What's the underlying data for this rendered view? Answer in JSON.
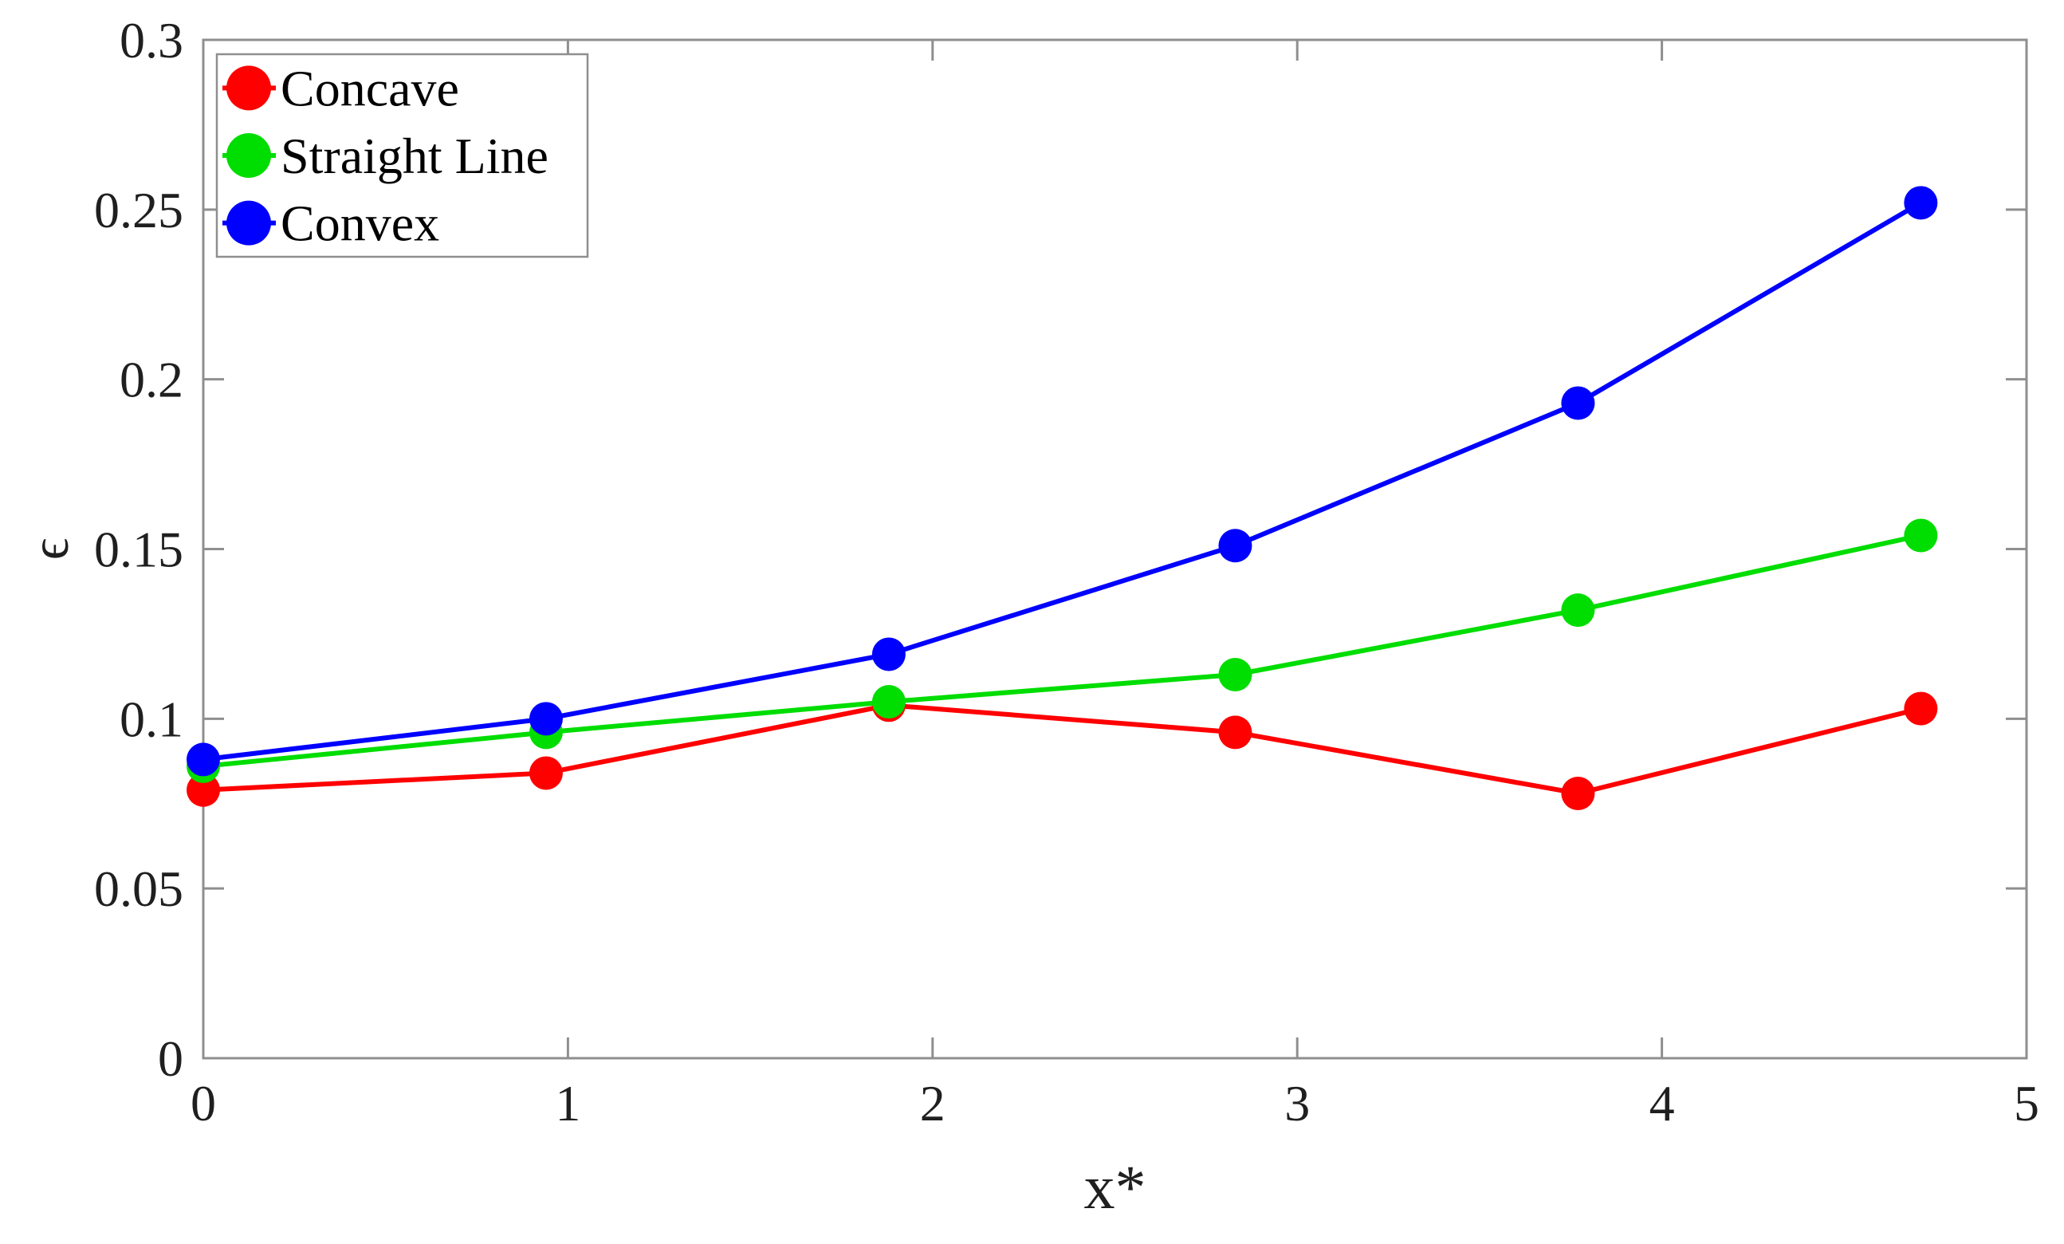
{
  "chart_data": {
    "type": "line",
    "title": "",
    "xlabel": "x*",
    "ylabel": "ϵ",
    "xlim": [
      0,
      5
    ],
    "ylim": [
      0,
      0.3
    ],
    "xticks": [
      0,
      1,
      2,
      3,
      4,
      5
    ],
    "xtick_labels": [
      "0",
      "1",
      "2",
      "3",
      "4",
      "5"
    ],
    "yticks": [
      0,
      0.05,
      0.1,
      0.15,
      0.2,
      0.25,
      0.3
    ],
    "ytick_labels": [
      "0",
      "0.05",
      "0.1",
      "0.15",
      "0.2",
      "0.25",
      "0.3"
    ],
    "grid": false,
    "x": [
      0,
      0.94,
      1.88,
      2.83,
      3.77,
      4.71
    ],
    "series": [
      {
        "name": "Concave",
        "color": "#ff0000",
        "marker": "circle",
        "values": [
          0.079,
          0.084,
          0.104,
          0.096,
          0.078,
          0.103
        ]
      },
      {
        "name": "Straight Line",
        "color": "#00dd00",
        "marker": "circle",
        "values": [
          0.086,
          0.096,
          0.105,
          0.113,
          0.132,
          0.154
        ]
      },
      {
        "name": "Convex",
        "color": "#0000ff",
        "marker": "circle",
        "values": [
          0.088,
          0.1,
          0.119,
          0.151,
          0.193,
          0.252
        ]
      }
    ],
    "legend": {
      "position": "top-left",
      "border": true,
      "labels": [
        "Concave",
        "Straight Line",
        "Convex"
      ]
    },
    "colors": {
      "axis": "#8f8f8f",
      "text": "#1f1f1f",
      "background": "#ffffff"
    }
  }
}
